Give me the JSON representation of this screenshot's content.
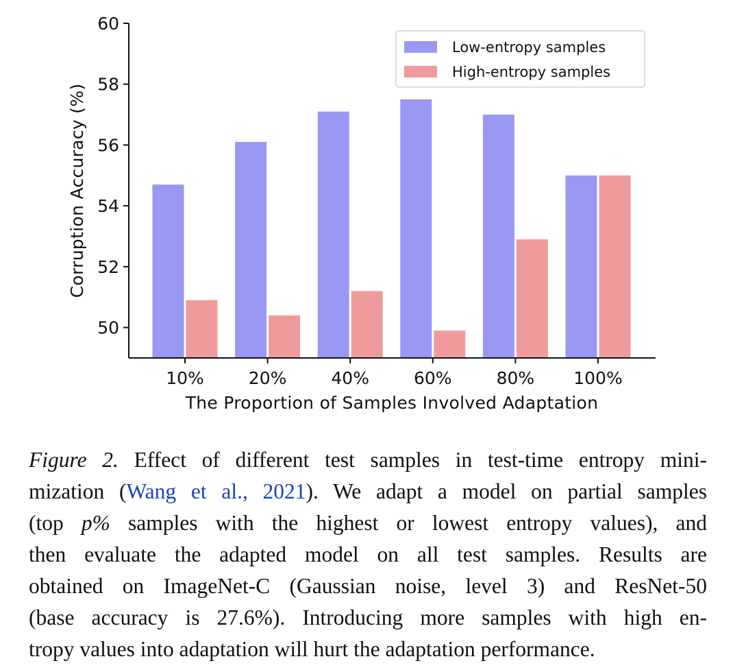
{
  "chart_data": {
    "type": "bar",
    "categories": [
      "10%",
      "20%",
      "40%",
      "60%",
      "80%",
      "100%"
    ],
    "series": [
      {
        "name": "Low-entropy samples",
        "color": "#9999f3",
        "values": [
          54.7,
          56.1,
          57.1,
          57.5,
          57.0,
          55.0
        ]
      },
      {
        "name": "High-entropy samples",
        "color": "#f09b9b",
        "values": [
          50.9,
          50.4,
          51.2,
          49.9,
          52.9,
          55.0
        ]
      }
    ],
    "xlabel": "The Proportion of Samples Involved Adaptation",
    "ylabel": "Corruption Accuracy (%)",
    "ylim": [
      49,
      60
    ],
    "yticks": [
      "50",
      "52",
      "54",
      "56",
      "58",
      "60"
    ],
    "grid": false,
    "legend_position": "top-right"
  },
  "caption": {
    "line1": {
      "label": "Figure 2.",
      "text": " Effect of different test samples in test-time entropy mini-"
    },
    "line2": {
      "pre": "mization (",
      "cite": "Wang et al., 2021",
      "post": "). We adapt a model on partial samples"
    },
    "line3": {
      "pre": "(top ",
      "math": "p%",
      "post": " samples with the highest or lowest entropy values), and"
    },
    "line4": "then evaluate the adapted model on all test samples. Results are",
    "line5": "obtained on ImageNet-C (Gaussian noise, level 3) and ResNet-50",
    "line6": "(base accuracy is 27.6%). Introducing more samples with high en-",
    "line7": "tropy values into adaptation will hurt the adaptation performance."
  }
}
